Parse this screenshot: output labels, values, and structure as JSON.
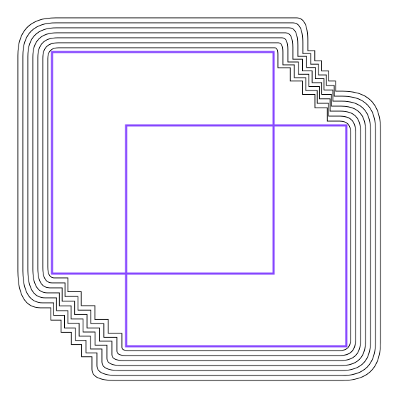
{
  "figure": {
    "background": "#ffffff",
    "offset_line_color": "#000000",
    "square_colors": [
      "#8a4dff",
      "#8a4dff"
    ],
    "offset_line_count": 7,
    "shapes": [
      "square-a",
      "square-b"
    ]
  }
}
